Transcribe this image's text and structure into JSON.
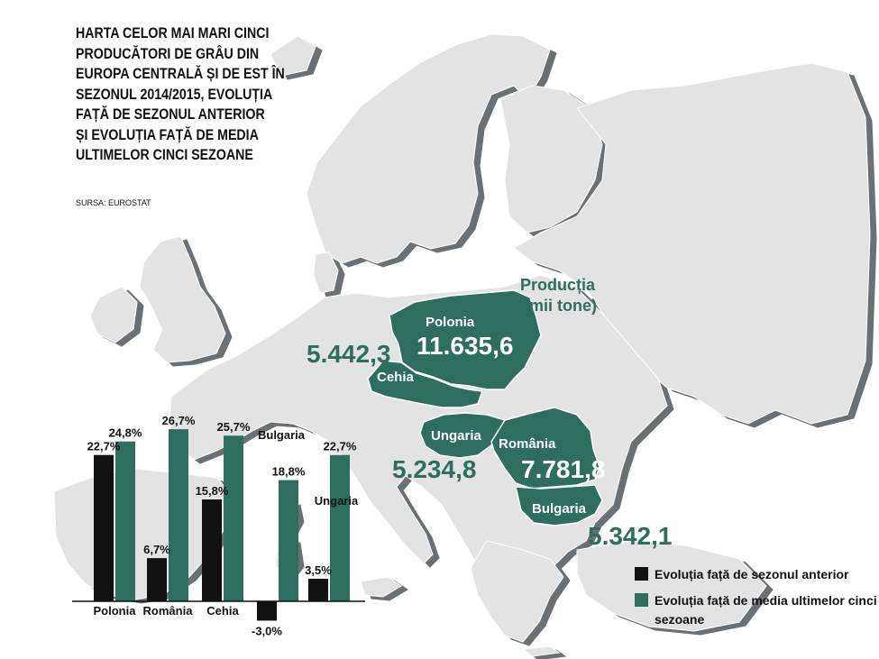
{
  "title_lines": [
    "HARTA CELOR MAI MARI CINCI",
    "PRODUCĂTORI DE GRÂU DIN",
    "EUROPA CENTRALĂ ȘI DE EST ÎN",
    "SEZONUL 2014/2015, EVOLUȚIA",
    "FAȚĂ DE SEZONUL ANTERIOR",
    "ȘI EVOLUȚIA FAȚĂ DE MEDIA",
    "ULTIMELOR CINCI SEZOANE"
  ],
  "source": "SURSA: EUROSTAT",
  "map": {
    "production_label_line1": "Producția",
    "production_label_line2": "(mii tone)",
    "countries": [
      {
        "name": "Polonia",
        "production": "11.635,6"
      },
      {
        "name": "Cehia",
        "production": "5.442,3"
      },
      {
        "name": "Ungaria",
        "production": "5.234,8"
      },
      {
        "name": "România",
        "production": "7.781,8"
      },
      {
        "name": "Bulgaria",
        "production": "5.342,1"
      }
    ]
  },
  "colors": {
    "map_land": "#e3e3e3",
    "map_shadow": "#6b7073",
    "highlight": "#2e6e5e",
    "previous_season": "#111111",
    "five_season_avg": "#2e6e5e"
  },
  "chart_data": {
    "type": "bar",
    "categories": [
      "Polonia",
      "România",
      "Cehia",
      "Bulgaria",
      "Ungaria"
    ],
    "series": [
      {
        "name": "Evoluția față de sezonul anterior",
        "values": [
          22.7,
          6.7,
          15.8,
          -3.0,
          3.5
        ]
      },
      {
        "name": "Evoluția față de media ultimelor cinci sezoane",
        "values": [
          24.8,
          26.7,
          25.7,
          18.8,
          22.7
        ]
      }
    ],
    "value_labels": [
      [
        "22,7%",
        "6,7%",
        "15,8%",
        "-3,0%",
        "3,5%"
      ],
      [
        "24,8%",
        "26,7%",
        "25,7%",
        "18,8%",
        "22,7%"
      ]
    ],
    "ylim": [
      -3.0,
      26.7
    ],
    "legend": [
      "Evoluția față de sezonul anterior",
      "Evoluția față de media ultimelor cinci sezoane"
    ]
  }
}
